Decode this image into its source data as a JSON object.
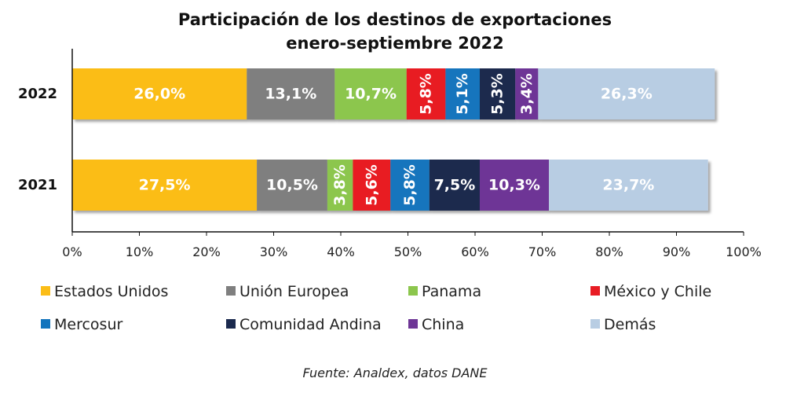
{
  "chart_data": {
    "type": "bar",
    "orientation": "horizontal",
    "stacked": true,
    "title": "Participación de los destinos de exportaciones",
    "subtitle": "enero-septiembre 2022",
    "categories": [
      "2022",
      "2021"
    ],
    "xlim": [
      0,
      100
    ],
    "x_ticks": [
      "0%",
      "10%",
      "20%",
      "30%",
      "40%",
      "50%",
      "60%",
      "70%",
      "80%",
      "90%",
      "100%"
    ],
    "series": [
      {
        "name": "Estados Unidos",
        "color": "#FBBD17",
        "values": [
          26.0,
          27.5
        ],
        "labels": [
          "26,0%",
          "27,5%"
        ]
      },
      {
        "name": "Unión Europea",
        "color": "#7F7F7F",
        "values": [
          13.1,
          10.5
        ],
        "labels": [
          "13,1%",
          "10,5%"
        ]
      },
      {
        "name": "Panama",
        "color": "#8CC64D",
        "values": [
          10.7,
          3.8
        ],
        "labels": [
          "10,7%",
          "3,8%"
        ]
      },
      {
        "name": "México y Chile",
        "color": "#E81C24",
        "values": [
          5.8,
          5.6
        ],
        "labels": [
          "5,8%",
          "5,6%"
        ]
      },
      {
        "name": "Mercosur",
        "color": "#1274BD",
        "values": [
          5.1,
          5.8
        ],
        "labels": [
          "5,1%",
          "5,8%"
        ]
      },
      {
        "name": "Comunidad Andina",
        "color": "#1B2A4E",
        "values": [
          5.3,
          7.5
        ],
        "labels": [
          "5,3%",
          "7,5%"
        ]
      },
      {
        "name": "China",
        "color": "#6E3696",
        "values": [
          3.4,
          10.3
        ],
        "labels": [
          "3,4%",
          "10,3%"
        ]
      },
      {
        "name": "Demás",
        "color": "#B8CDE3",
        "values": [
          26.3,
          23.7
        ],
        "labels": [
          "26,3%",
          "23,7%"
        ]
      }
    ],
    "legend_position": "bottom",
    "source": "Fuente: Analdex, datos DANE"
  }
}
